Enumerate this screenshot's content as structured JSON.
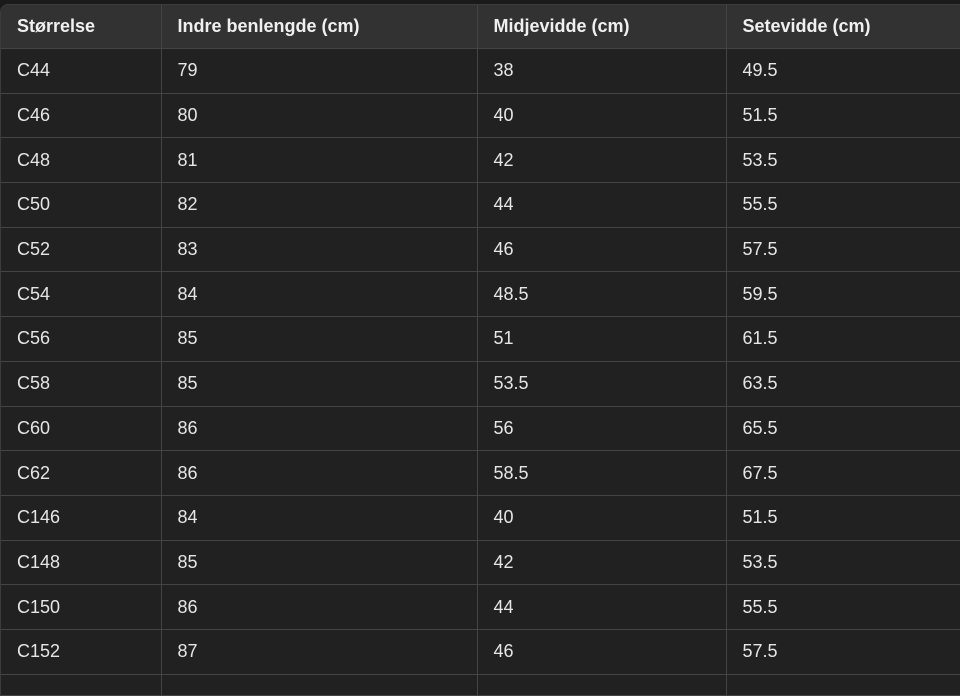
{
  "table": {
    "headers": [
      "Størrelse",
      "Indre benlengde (cm)",
      "Midjevidde (cm)",
      "Setevidde (cm)"
    ],
    "rows": [
      [
        "C44",
        "79",
        "38",
        "49.5"
      ],
      [
        "C46",
        "80",
        "40",
        "51.5"
      ],
      [
        "C48",
        "81",
        "42",
        "53.5"
      ],
      [
        "C50",
        "82",
        "44",
        "55.5"
      ],
      [
        "C52",
        "83",
        "46",
        "57.5"
      ],
      [
        "C54",
        "84",
        "48.5",
        "59.5"
      ],
      [
        "C56",
        "85",
        "51",
        "61.5"
      ],
      [
        "C58",
        "85",
        "53.5",
        "63.5"
      ],
      [
        "C60",
        "86",
        "56",
        "65.5"
      ],
      [
        "C62",
        "86",
        "58.5",
        "67.5"
      ],
      [
        "C146",
        "84",
        "40",
        "51.5"
      ],
      [
        "C148",
        "85",
        "42",
        "53.5"
      ],
      [
        "C150",
        "86",
        "44",
        "55.5"
      ],
      [
        "C152",
        "87",
        "46",
        "57.5"
      ]
    ]
  },
  "colors": {
    "header_bg": "#323232",
    "row_bg": "#212121",
    "border": "#444444",
    "text": "#e6e6e6"
  }
}
